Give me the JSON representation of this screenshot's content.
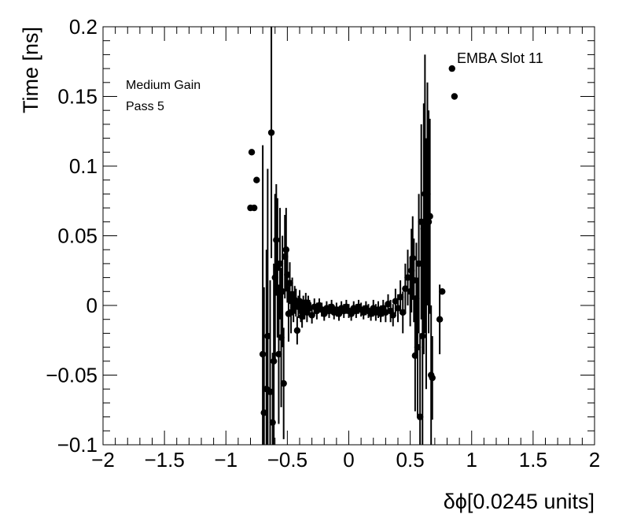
{
  "chart_data": {
    "type": "scatter",
    "title": "",
    "xlabel": "δϕ[0.0245 units]",
    "ylabel": "Time [ns]",
    "xlim": [
      -2,
      2
    ],
    "ylim": [
      -0.1,
      0.2
    ],
    "grid": false,
    "x_ticks": [
      -2,
      -1.5,
      -1,
      -0.5,
      0,
      0.5,
      1,
      1.5,
      2
    ],
    "x_tick_labels": [
      "−2",
      "−1.5",
      "−1",
      "−0.5",
      "0",
      "0.5",
      "1",
      "1.5",
      "2"
    ],
    "y_ticks": [
      -0.1,
      -0.05,
      0,
      0.05,
      0.1,
      0.15,
      0.2
    ],
    "y_tick_labels": [
      "−0.1",
      "−0.05",
      "0",
      "0.05",
      "0.1",
      "0.15",
      "0.2"
    ],
    "annotations": [
      "Medium Gain",
      "Pass 5",
      "EMBA Slot 11"
    ],
    "series": [
      {
        "points": [
          {
            "x": -0.79,
            "y": 0.11,
            "err": 0
          },
          {
            "x": -0.8,
            "y": 0.07,
            "err": 0
          },
          {
            "x": -0.77,
            "y": 0.07,
            "err": 0
          },
          {
            "x": -0.75,
            "y": 0.09,
            "err": 0
          },
          {
            "x": -0.7,
            "y": -0.035,
            "err": 0.15
          },
          {
            "x": -0.69,
            "y": -0.077,
            "err": 0.09
          },
          {
            "x": -0.67,
            "y": -0.06,
            "err": 0.1
          },
          {
            "x": -0.66,
            "y": -0.022,
            "err": 0.12
          },
          {
            "x": -0.64,
            "y": -0.062,
            "err": 0.08
          },
          {
            "x": -0.63,
            "y": 0.124,
            "err": 0.09
          },
          {
            "x": -0.62,
            "y": -0.084,
            "err": 0.05
          },
          {
            "x": -0.61,
            "y": -0.04,
            "err": 0.07
          },
          {
            "x": -0.6,
            "y": 0.02,
            "err": 0.06
          },
          {
            "x": -0.59,
            "y": 0.047,
            "err": 0.04
          },
          {
            "x": -0.58,
            "y": 0.027,
            "err": 0.05
          },
          {
            "x": -0.57,
            "y": -0.035,
            "err": 0.05
          },
          {
            "x": -0.56,
            "y": 0.03,
            "err": 0.04
          },
          {
            "x": -0.55,
            "y": -0.023,
            "err": 0.05
          },
          {
            "x": -0.54,
            "y": 0.01,
            "err": 0.04
          },
          {
            "x": -0.53,
            "y": -0.056,
            "err": 0.04
          },
          {
            "x": -0.52,
            "y": 0.035,
            "err": 0.03
          },
          {
            "x": -0.51,
            "y": 0.04,
            "err": 0.03
          },
          {
            "x": -0.5,
            "y": 0.022,
            "err": 0.02
          },
          {
            "x": -0.49,
            "y": -0.006,
            "err": 0.02
          },
          {
            "x": -0.48,
            "y": 0.016,
            "err": 0.015
          },
          {
            "x": -0.47,
            "y": -0.005,
            "err": 0.015
          },
          {
            "x": -0.46,
            "y": 0.008,
            "err": 0.012
          },
          {
            "x": -0.45,
            "y": -0.002,
            "err": 0.01
          },
          {
            "x": -0.44,
            "y": 0.004,
            "err": 0.01
          },
          {
            "x": -0.43,
            "y": 0.002,
            "err": 0.01
          },
          {
            "x": -0.42,
            "y": -0.018,
            "err": 0.01
          },
          {
            "x": -0.41,
            "y": -0.001,
            "err": 0.008
          },
          {
            "x": -0.4,
            "y": 0.003,
            "err": 0.008
          },
          {
            "x": -0.39,
            "y": -0.004,
            "err": 0.008
          },
          {
            "x": -0.38,
            "y": -0.008,
            "err": 0.008
          },
          {
            "x": -0.37,
            "y": 0.0,
            "err": 0.007
          },
          {
            "x": -0.36,
            "y": -0.003,
            "err": 0.007
          },
          {
            "x": -0.35,
            "y": 0.002,
            "err": 0.007
          },
          {
            "x": -0.34,
            "y": -0.005,
            "err": 0.007
          },
          {
            "x": -0.33,
            "y": 0.001,
            "err": 0.006
          },
          {
            "x": -0.32,
            "y": -0.002,
            "err": 0.006
          },
          {
            "x": -0.3,
            "y": -0.007,
            "err": 0.006
          },
          {
            "x": -0.28,
            "y": -0.001,
            "err": 0.006
          },
          {
            "x": -0.26,
            "y": -0.004,
            "err": 0.006
          },
          {
            "x": -0.24,
            "y": 0.0,
            "err": 0.005
          },
          {
            "x": -0.22,
            "y": -0.003,
            "err": 0.005
          },
          {
            "x": -0.2,
            "y": -0.006,
            "err": 0.005
          },
          {
            "x": -0.18,
            "y": -0.002,
            "err": 0.005
          },
          {
            "x": -0.16,
            "y": -0.004,
            "err": 0.005
          },
          {
            "x": -0.14,
            "y": -0.001,
            "err": 0.005
          },
          {
            "x": -0.12,
            "y": -0.005,
            "err": 0.005
          },
          {
            "x": -0.1,
            "y": -0.003,
            "err": 0.005
          },
          {
            "x": -0.08,
            "y": -0.006,
            "err": 0.005
          },
          {
            "x": -0.06,
            "y": -0.002,
            "err": 0.005
          },
          {
            "x": -0.04,
            "y": -0.004,
            "err": 0.005
          },
          {
            "x": -0.02,
            "y": -0.001,
            "err": 0.005
          },
          {
            "x": 0.0,
            "y": -0.004,
            "err": 0.005
          },
          {
            "x": 0.02,
            "y": -0.006,
            "err": 0.005
          },
          {
            "x": 0.04,
            "y": -0.002,
            "err": 0.005
          },
          {
            "x": 0.06,
            "y": -0.004,
            "err": 0.005
          },
          {
            "x": 0.08,
            "y": -0.001,
            "err": 0.005
          },
          {
            "x": 0.1,
            "y": -0.003,
            "err": 0.005
          },
          {
            "x": 0.12,
            "y": -0.005,
            "err": 0.005
          },
          {
            "x": 0.14,
            "y": -0.002,
            "err": 0.005
          },
          {
            "x": 0.16,
            "y": -0.004,
            "err": 0.005
          },
          {
            "x": 0.18,
            "y": -0.006,
            "err": 0.005
          },
          {
            "x": 0.2,
            "y": -0.002,
            "err": 0.006
          },
          {
            "x": 0.22,
            "y": -0.005,
            "err": 0.006
          },
          {
            "x": 0.24,
            "y": -0.003,
            "err": 0.006
          },
          {
            "x": 0.26,
            "y": -0.006,
            "err": 0.006
          },
          {
            "x": 0.28,
            "y": -0.002,
            "err": 0.006
          },
          {
            "x": 0.3,
            "y": -0.005,
            "err": 0.007
          },
          {
            "x": 0.32,
            "y": 0.001,
            "err": 0.007
          },
          {
            "x": 0.34,
            "y": -0.004,
            "err": 0.008
          },
          {
            "x": 0.36,
            "y": -0.007,
            "err": 0.008
          },
          {
            "x": 0.38,
            "y": 0.003,
            "err": 0.009
          },
          {
            "x": 0.4,
            "y": -0.002,
            "err": 0.01
          },
          {
            "x": 0.42,
            "y": 0.006,
            "err": 0.012
          },
          {
            "x": 0.44,
            "y": -0.005,
            "err": 0.015
          },
          {
            "x": 0.46,
            "y": 0.012,
            "err": 0.018
          },
          {
            "x": 0.48,
            "y": 0.02,
            "err": 0.02
          },
          {
            "x": 0.5,
            "y": 0.01,
            "err": 0.025
          },
          {
            "x": 0.51,
            "y": 0.025,
            "err": 0.03
          },
          {
            "x": 0.52,
            "y": 0.034,
            "err": 0.03
          },
          {
            "x": 0.53,
            "y": 0.018,
            "err": 0.03
          },
          {
            "x": 0.54,
            "y": -0.036,
            "err": 0.04
          },
          {
            "x": 0.55,
            "y": 0.005,
            "err": 0.04
          },
          {
            "x": 0.56,
            "y": -0.03,
            "err": 0.05
          },
          {
            "x": 0.57,
            "y": 0.03,
            "err": 0.05
          },
          {
            "x": 0.58,
            "y": -0.08,
            "err": 0.06
          },
          {
            "x": 0.59,
            "y": 0.06,
            "err": 0.07
          },
          {
            "x": 0.6,
            "y": -0.022,
            "err": 0.08
          },
          {
            "x": 0.61,
            "y": 0.055,
            "err": 0.09
          },
          {
            "x": 0.62,
            "y": 0.08,
            "err": 0.1
          },
          {
            "x": 0.63,
            "y": 0.03,
            "err": 0.09
          },
          {
            "x": 0.64,
            "y": 0.08,
            "err": 0.08
          },
          {
            "x": 0.65,
            "y": 0.06,
            "err": 0.08
          },
          {
            "x": 0.66,
            "y": 0.064,
            "err": 0.07
          },
          {
            "x": 0.67,
            "y": -0.05,
            "err": 0.05
          },
          {
            "x": 0.68,
            "y": -0.052,
            "err": 0.03
          },
          {
            "x": 0.74,
            "y": -0.01,
            "err": 0.025
          },
          {
            "x": 0.76,
            "y": 0.01,
            "err": 0
          },
          {
            "x": 0.84,
            "y": 0.17,
            "err": 0
          },
          {
            "x": 0.86,
            "y": 0.15,
            "err": 0
          }
        ]
      }
    ]
  }
}
